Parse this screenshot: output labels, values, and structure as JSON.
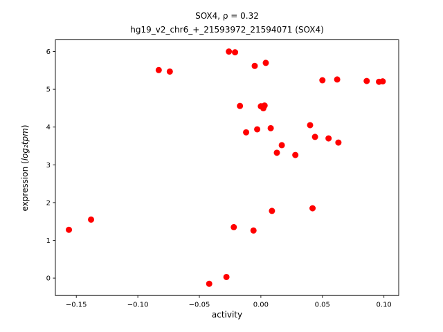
{
  "figure": {
    "title_line1": "SOX4, ρ = 0.32",
    "title_line2": "hg19_v2_chr6_+_21593972_21594071 (SOX4)",
    "xlabel": "activity",
    "ylabel": {
      "prefix": "expression (",
      "math": "log₂tpm",
      "suffix": ")"
    }
  },
  "chart_data": {
    "type": "scatter",
    "title": "SOX4, ρ = 0.32\nhg19_v2_chr6_+_21593972_21594071 (SOX4)",
    "xlabel": "activity",
    "ylabel": "expression (log2tpm)",
    "legend": "none",
    "grid": false,
    "marker_color": "#ff0000",
    "xlim": [
      -0.167,
      0.112
    ],
    "ylim": [
      -0.46,
      6.31
    ],
    "x_ticks": [
      -0.15,
      -0.1,
      -0.05,
      0.0,
      0.05,
      0.1
    ],
    "x_tick_labels": [
      "−0.15",
      "−0.10",
      "−0.05",
      "0.00",
      "0.05",
      "0.10"
    ],
    "y_ticks": [
      0,
      1,
      2,
      3,
      4,
      5,
      6
    ],
    "y_tick_labels": [
      "0",
      "1",
      "2",
      "3",
      "4",
      "5",
      "6"
    ],
    "points": [
      [
        -0.156,
        1.28
      ],
      [
        -0.138,
        1.55
      ],
      [
        -0.083,
        5.51
      ],
      [
        -0.074,
        5.47
      ],
      [
        -0.042,
        -0.15
      ],
      [
        -0.028,
        0.03
      ],
      [
        -0.026,
        6.0
      ],
      [
        -0.021,
        5.98
      ],
      [
        -0.022,
        1.35
      ],
      [
        -0.017,
        4.56
      ],
      [
        -0.012,
        3.86
      ],
      [
        -0.006,
        1.26
      ],
      [
        -0.005,
        5.62
      ],
      [
        -0.003,
        3.94
      ],
      [
        0.0,
        4.55
      ],
      [
        0.002,
        4.5
      ],
      [
        0.003,
        4.57
      ],
      [
        0.004,
        5.7
      ],
      [
        0.008,
        3.97
      ],
      [
        0.009,
        1.78
      ],
      [
        0.013,
        3.32
      ],
      [
        0.017,
        3.52
      ],
      [
        0.028,
        3.26
      ],
      [
        0.04,
        4.05
      ],
      [
        0.042,
        1.85
      ],
      [
        0.044,
        3.74
      ],
      [
        0.05,
        5.24
      ],
      [
        0.055,
        3.7
      ],
      [
        0.062,
        5.26
      ],
      [
        0.063,
        3.59
      ],
      [
        0.086,
        5.22
      ],
      [
        0.096,
        5.2
      ],
      [
        0.099,
        5.21
      ]
    ]
  }
}
